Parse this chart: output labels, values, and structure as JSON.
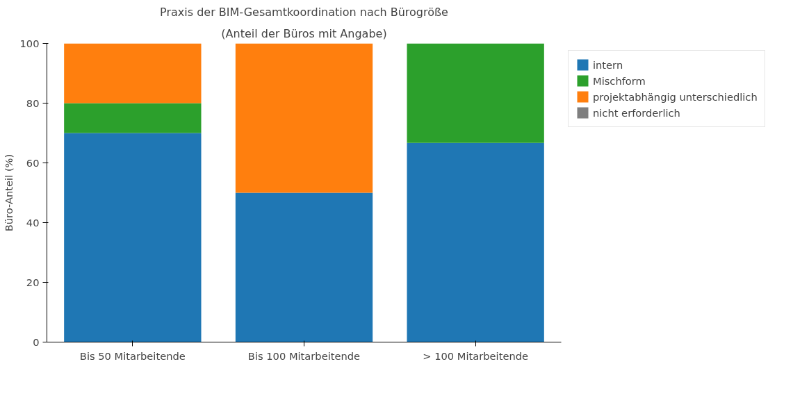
{
  "chart_data": {
    "type": "bar",
    "stacked": true,
    "title": "Praxis der BIM-Gesamtkoordination nach Bürogröße",
    "subtitle": "(Anteil der Büros mit Angabe)",
    "ylabel": "Büro-Anteil (%)",
    "categories": [
      "Bis 50 Mitarbeitende",
      "Bis 100 Mitarbeitende",
      "> 100 Mitarbeitende"
    ],
    "series": [
      {
        "name": "intern",
        "color": "#1f77b4",
        "values": [
          70,
          50,
          66.7
        ]
      },
      {
        "name": "Mischform",
        "color": "#2ca02c",
        "values": [
          10,
          0,
          33.3
        ]
      },
      {
        "name": "projektabhängig unterschiedlich",
        "color": "#ff7f0e",
        "values": [
          20,
          50,
          0
        ]
      },
      {
        "name": "nicht erforderlich",
        "color": "#7f7f7f",
        "values": [
          0,
          0,
          0
        ]
      }
    ],
    "ylim": [
      0,
      100
    ],
    "yticks": [
      0,
      20,
      40,
      60,
      80,
      100
    ],
    "grid": false,
    "legend": "top right"
  }
}
